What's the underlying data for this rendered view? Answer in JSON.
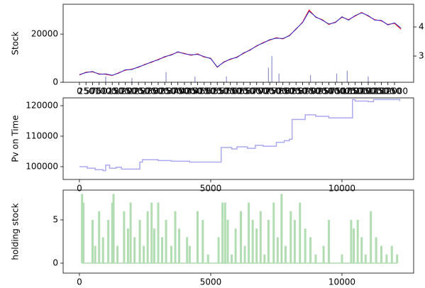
{
  "chart_data": [
    {
      "type": "line",
      "ylabel": "Stock",
      "x": [
        0,
        250,
        500,
        750,
        1000,
        1250,
        1500,
        1750,
        2000,
        2250,
        2500,
        2750,
        3000,
        3250,
        3500,
        3750,
        4000,
        4250,
        4500,
        4750,
        5000,
        5250,
        5500,
        5750,
        6000,
        6250,
        6500,
        6750,
        7000,
        7250,
        7500,
        7750,
        8000,
        8250,
        8500,
        8750,
        9000,
        9250,
        9500,
        9750,
        10000,
        10250,
        10500,
        10750,
        11000,
        11250,
        11500,
        11750,
        12000,
        12250
      ],
      "series": [
        {
          "color": "#ff0000",
          "values": [
            3000,
            4200,
            4300,
            3500,
            3300,
            2800,
            4000,
            5000,
            5500,
            6200,
            7500,
            8300,
            9500,
            10500,
            11500,
            12500,
            12000,
            11200,
            11800,
            10500,
            10000,
            6200,
            8500,
            9500,
            10500,
            12000,
            13500,
            15000,
            16500,
            17500,
            18500,
            18000,
            19500,
            22000,
            25000,
            30000,
            27000,
            26000,
            24000,
            25000,
            27000,
            26000,
            27500,
            29000,
            27500,
            26000,
            25500,
            24000,
            24500,
            22000
          ]
        },
        {
          "color": "#3030d0",
          "values": [
            3200,
            4000,
            4500,
            3300,
            3500,
            2900,
            3800,
            5200,
            5300,
            6400,
            7300,
            8500,
            9300,
            10700,
            11300,
            12700,
            11800,
            11400,
            11600,
            10700,
            9800,
            6400,
            8300,
            9700,
            10300,
            12200,
            13300,
            15200,
            16300,
            17700,
            18300,
            18200,
            19300,
            22200,
            24800,
            29500,
            27200,
            25800,
            24200,
            24800,
            27200,
            25800,
            27700,
            28800,
            27700,
            25800,
            25700,
            23800,
            24700,
            22500
          ]
        },
        {
          "type": "bar",
          "axis": "y2",
          "color": "#9090c8",
          "x": [
            1000,
            2000,
            3300,
            4400,
            5600,
            7200,
            7330,
            7600,
            8800,
            9800,
            10200,
            11000
          ],
          "values": [
            2.3,
            2.25,
            2.45,
            2.3,
            2.3,
            2.6,
            3.0,
            2.4,
            2.35,
            2.4,
            2.5,
            2.3
          ]
        }
      ],
      "xlim": [
        -620,
        12730
      ],
      "ylim": [
        0,
        32400
      ],
      "yticks": [
        0,
        20000
      ],
      "y2lim": [
        2.1,
        4.78
      ],
      "y2ticks": [
        3,
        4
      ],
      "xticks": [
        0,
        250,
        500,
        750,
        1000,
        1250,
        1500,
        1750,
        2000,
        2250,
        2500,
        2750,
        3000,
        3250,
        3500,
        3750,
        4000,
        4250,
        4500,
        4750,
        5000,
        5250,
        5500,
        5750,
        6000,
        6250,
        6500,
        6750,
        7000,
        7250,
        7500,
        7750,
        8000,
        8250,
        8500,
        8750,
        9000,
        9250,
        9500,
        9750,
        10000,
        10250,
        10500,
        10750,
        11000,
        11250,
        11500,
        11750,
        12000
      ]
    },
    {
      "type": "line",
      "ylabel": "Pv on Time",
      "drawstyle": "steps-post",
      "color": "#aaaaee",
      "x": [
        0,
        300,
        600,
        900,
        1000,
        1150,
        1400,
        1600,
        2300,
        2400,
        3000,
        3500,
        4200,
        5300,
        5400,
        5800,
        6000,
        6400,
        6700,
        7000,
        7500,
        7800,
        8000,
        8100,
        8600,
        9000,
        9500,
        10000,
        10400,
        10500,
        11000,
        11200,
        12200
      ],
      "values": [
        100000,
        99500,
        99000,
        98700,
        100500,
        99500,
        99800,
        99200,
        101500,
        102300,
        102000,
        101800,
        101500,
        101500,
        106300,
        105800,
        106500,
        106000,
        107000,
        106700,
        108000,
        108500,
        109000,
        115500,
        117000,
        116500,
        116000,
        116000,
        122000,
        121500,
        121300,
        122000,
        121500
      ],
      "xlim": [
        -620,
        12730
      ],
      "ylim": [
        95800,
        122560
      ],
      "xticks": [
        0,
        5000,
        10000
      ],
      "yticks": [
        100000,
        110000,
        120000
      ]
    },
    {
      "type": "bar",
      "ylabel": "holding stock",
      "color": "#b2dcb2",
      "x": [
        100,
        150,
        500,
        600,
        750,
        900,
        1100,
        1250,
        1300,
        1450,
        1700,
        1850,
        1950,
        2100,
        2300,
        2450,
        2600,
        2750,
        2850,
        3000,
        3150,
        3300,
        3500,
        3650,
        3800,
        4100,
        4200,
        4500,
        4700,
        4900,
        5300,
        5450,
        5550,
        5650,
        5800,
        5950,
        6150,
        6300,
        6450,
        6600,
        6750,
        6900,
        7050,
        7200,
        7400,
        7550,
        7700,
        7850,
        8050,
        8200,
        8400,
        8600,
        8800,
        9000,
        9300,
        9500,
        10000,
        10350,
        10450,
        10600,
        10750,
        10900,
        11100,
        11300,
        11500,
        11700,
        11900,
        12100
      ],
      "values": [
        8,
        7,
        5,
        2,
        6,
        3,
        5,
        7,
        8,
        2,
        6,
        4,
        7,
        3,
        5,
        2,
        6,
        7,
        4,
        7,
        3,
        5,
        2,
        6,
        4,
        3,
        2,
        6,
        5,
        1,
        3,
        7,
        7,
        5,
        1,
        4,
        6,
        2,
        7,
        5,
        4,
        6,
        1,
        5,
        7,
        3,
        8,
        2,
        6,
        5,
        7,
        4,
        3,
        1,
        2,
        5,
        1,
        5,
        4,
        5,
        3,
        1,
        6,
        3,
        2,
        1,
        2,
        1
      ],
      "xlim": [
        -620,
        12730
      ],
      "ylim": [
        -1.15,
        8.44
      ],
      "xticks": [
        0,
        5000,
        10000
      ],
      "yticks": [
        0,
        5
      ]
    }
  ]
}
